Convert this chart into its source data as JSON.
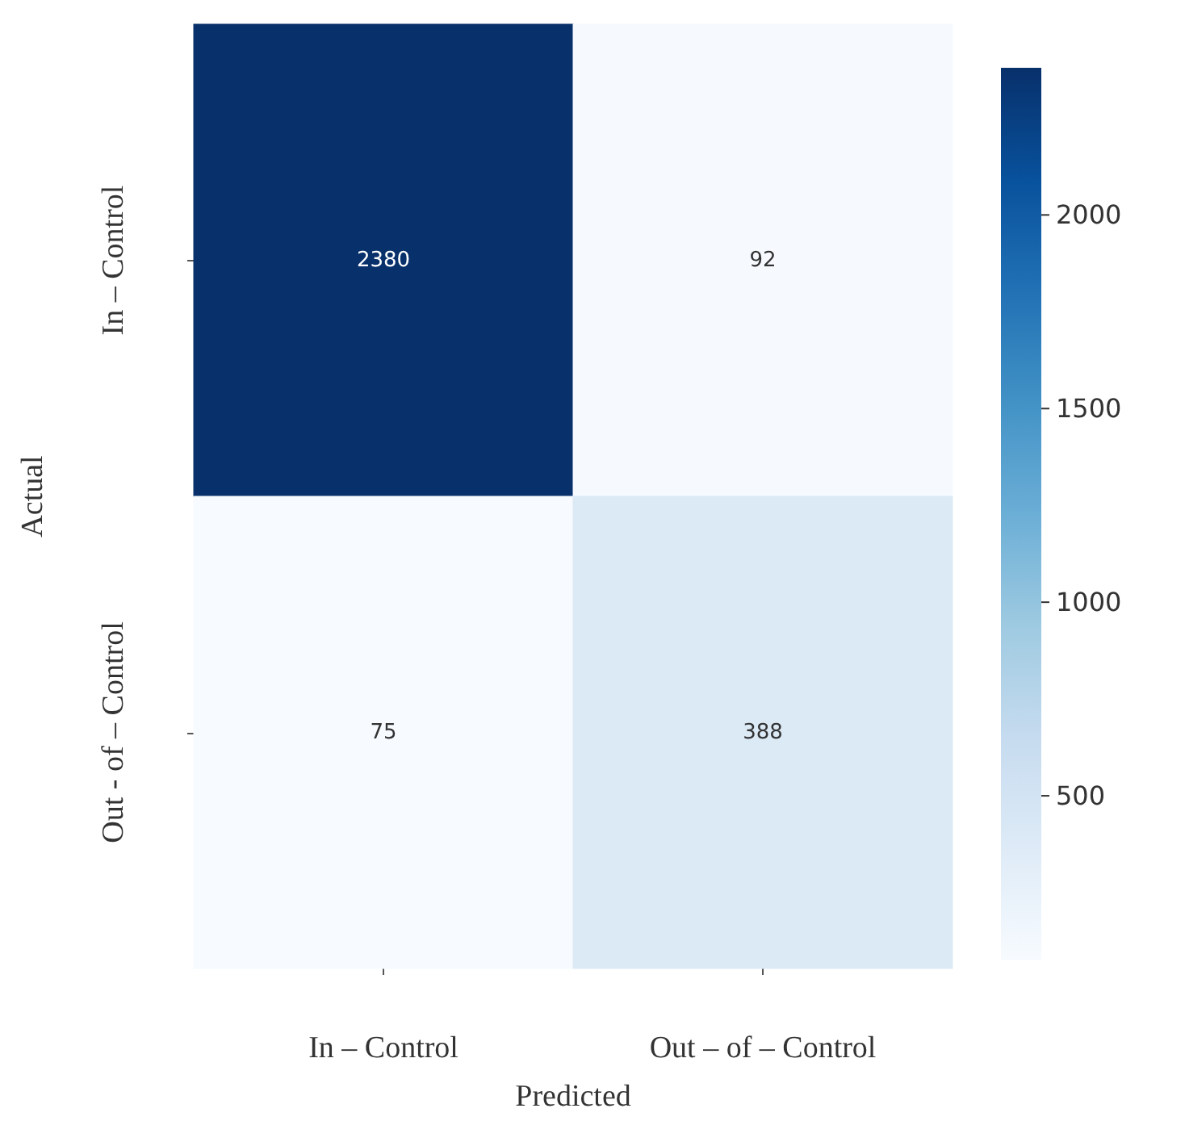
{
  "chart_data": {
    "type": "heatmap",
    "xlabel": "Predicted",
    "ylabel": "Actual",
    "categories": [
      "In – Control",
      "Out – of – Control"
    ],
    "y_categories": [
      "In – Control",
      "Out - of – Control"
    ],
    "cells": [
      [
        2380,
        92
      ],
      [
        75,
        388
      ]
    ],
    "data_labels": true,
    "clim": [
      75,
      2380
    ],
    "cticks": [
      500,
      1000,
      1500,
      2000
    ]
  }
}
